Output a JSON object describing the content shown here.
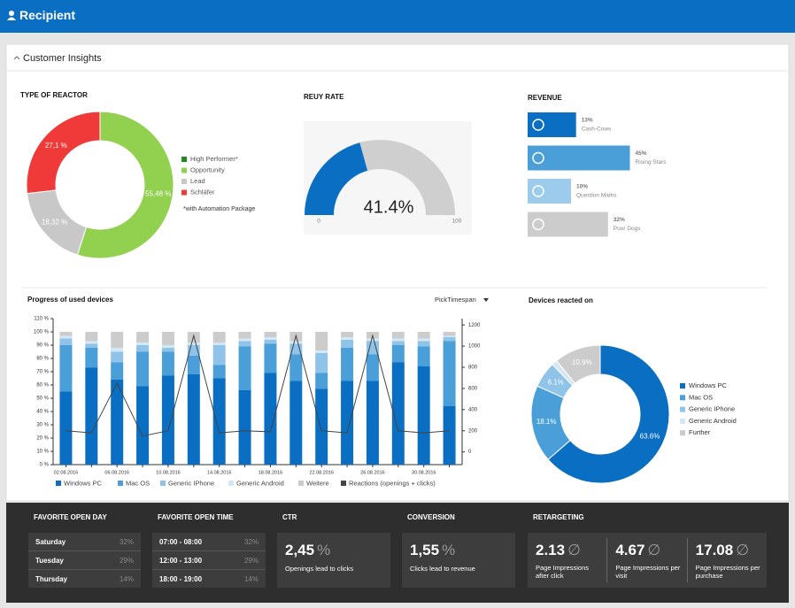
{
  "header": {
    "title": "Recipient"
  },
  "panel": {
    "title": "Customer Insights"
  },
  "chart_data": [
    {
      "type": "pie",
      "donut": true,
      "title": "TYPE OF REACTOR",
      "categories": [
        "High Performer*",
        "Opportunity",
        "Lead",
        "Schläfer"
      ],
      "values": [
        0,
        55.48,
        18.32,
        27.1
      ],
      "value_labels": [
        null,
        "55,48 %",
        "18,32 %",
        "27,1 %"
      ],
      "colors": [
        "#1a8f1a",
        "#92d050",
        "#c8c8c8",
        "#f03a3a"
      ],
      "annotation": "*with Automation Package"
    },
    {
      "type": "gauge",
      "title": "REUY RATE",
      "value": 41.4,
      "value_label": "41.4%",
      "ylim": [
        0,
        100
      ],
      "yticks": [
        0,
        100
      ],
      "color": "#0a6fc2"
    },
    {
      "type": "bar",
      "horizontal": true,
      "title": "REVENUE",
      "categories": [
        "Cash-Cows",
        "Rising Stars",
        "Question Marks",
        "Poor Dogs"
      ],
      "values": [
        13,
        45,
        10,
        32
      ],
      "value_labels": [
        "13%",
        "45%",
        "10%",
        "32%"
      ],
      "colors": [
        "#0a6fc2",
        "#4a9fd8",
        "#9ccbeb",
        "#cccccc"
      ]
    },
    {
      "type": "bar",
      "stacked": true,
      "title": "Progress of used devices",
      "button": "PickTimespan",
      "categories": [
        "02.08.2016",
        null,
        "06.08.2016",
        null,
        "10.08.2016",
        null,
        "14.08.2016",
        null,
        "18.08.2016",
        null,
        "22.08.2016",
        null,
        "26.08.2016",
        null,
        "30.08.2016",
        null
      ],
      "series": [
        {
          "name": "Windows PC",
          "color": "#0a6fc2",
          "values": [
            55,
            73,
            64,
            59,
            67,
            68,
            65,
            56,
            69,
            63,
            57,
            63,
            63,
            77,
            74,
            44
          ]
        },
        {
          "name": "Mac OS",
          "color": "#4a9fd8",
          "values": [
            35,
            15,
            13,
            26,
            18,
            14,
            10,
            33,
            22,
            20,
            12,
            25,
            20,
            13,
            15,
            49
          ]
        },
        {
          "name": "Generic IPhone",
          "color": "#8fc3e8",
          "values": [
            5,
            3,
            8,
            5,
            3,
            8,
            15,
            4,
            3,
            8,
            15,
            6,
            10,
            3,
            4,
            3
          ]
        },
        {
          "name": "Generic Android",
          "color": "#d3e7f5",
          "values": [
            2,
            2,
            3,
            2,
            2,
            2,
            2,
            2,
            2,
            2,
            2,
            2,
            2,
            2,
            2,
            1
          ]
        },
        {
          "name": "Weitere",
          "color": "#cccccc",
          "values": [
            3,
            7,
            12,
            8,
            10,
            8,
            8,
            5,
            4,
            7,
            14,
            4,
            5,
            5,
            5,
            3
          ]
        },
        {
          "name": "Reactions (openings + clicks)",
          "color": "#444444",
          "type": "line",
          "axis": "y2",
          "values": [
            200,
            180,
            650,
            150,
            200,
            1100,
            180,
            200,
            190,
            1100,
            200,
            180,
            1100,
            200,
            180,
            200
          ]
        }
      ],
      "ylim": [
        0,
        110
      ],
      "yticks": [
        {
          "value": 0,
          "label": "0 %"
        },
        {
          "value": 10,
          "label": "10 %"
        },
        {
          "value": 20,
          "label": "20 %"
        },
        {
          "value": 30,
          "label": "30 %"
        },
        {
          "value": 40,
          "label": "40 %"
        },
        {
          "value": 50,
          "label": "50 %"
        },
        {
          "value": 60,
          "label": "60 %"
        },
        {
          "value": 70,
          "label": "70 %"
        },
        {
          "value": 80,
          "label": "80 %"
        },
        {
          "value": 90,
          "label": "90 %"
        },
        {
          "value": 100,
          "label": "100 %"
        },
        {
          "value": 110,
          "label": "110 %"
        }
      ],
      "y2lim": [
        -120,
        1260
      ],
      "y2ticks": [
        0,
        200,
        400,
        600,
        800,
        1000,
        1200
      ]
    },
    {
      "type": "pie",
      "donut": true,
      "title": "Devices reacted on",
      "categories": [
        "Windows PC",
        "Mac OS",
        "Generic IPhone",
        "Generic Android",
        "Further"
      ],
      "values": [
        63.6,
        18.1,
        6.1,
        1.3,
        10.9
      ],
      "value_labels": [
        "63.6%",
        "18.1%",
        "6.1%",
        null,
        "10.9%"
      ],
      "colors": [
        "#0a6fc2",
        "#4a9fd8",
        "#8fc3e8",
        "#d3e7f5",
        "#cccccc"
      ]
    }
  ],
  "stats": {
    "open_day": {
      "title": "FAVORITE OPEN DAY",
      "rows": [
        [
          "Saturday",
          "32%"
        ],
        [
          "Tuesday",
          "29%"
        ],
        [
          "Thursday",
          "14%"
        ]
      ]
    },
    "open_time": {
      "title": "FAVORITE OPEN TIME",
      "rows": [
        [
          "07:00 - 08:00",
          "32%"
        ],
        [
          "12:00 - 13:00",
          "29%"
        ],
        [
          "18:00 - 19:00",
          "14%"
        ]
      ]
    },
    "ctr": {
      "title": "CTR",
      "value": "2,45",
      "unit": "%",
      "caption": "Openings lead to clicks"
    },
    "conversion": {
      "title": "CONVERSION",
      "value": "1,55",
      "unit": "%",
      "caption": "Clicks lead to revenue"
    },
    "retargeting": {
      "title": "RETARGETING",
      "symbol": "∅",
      "items": [
        {
          "value": "2.13",
          "caption": "Page Impressions after click"
        },
        {
          "value": "4.67",
          "caption": "Page Impressions per visit"
        },
        {
          "value": "17.08",
          "caption": "Page Impressions per purchase"
        }
      ]
    }
  }
}
